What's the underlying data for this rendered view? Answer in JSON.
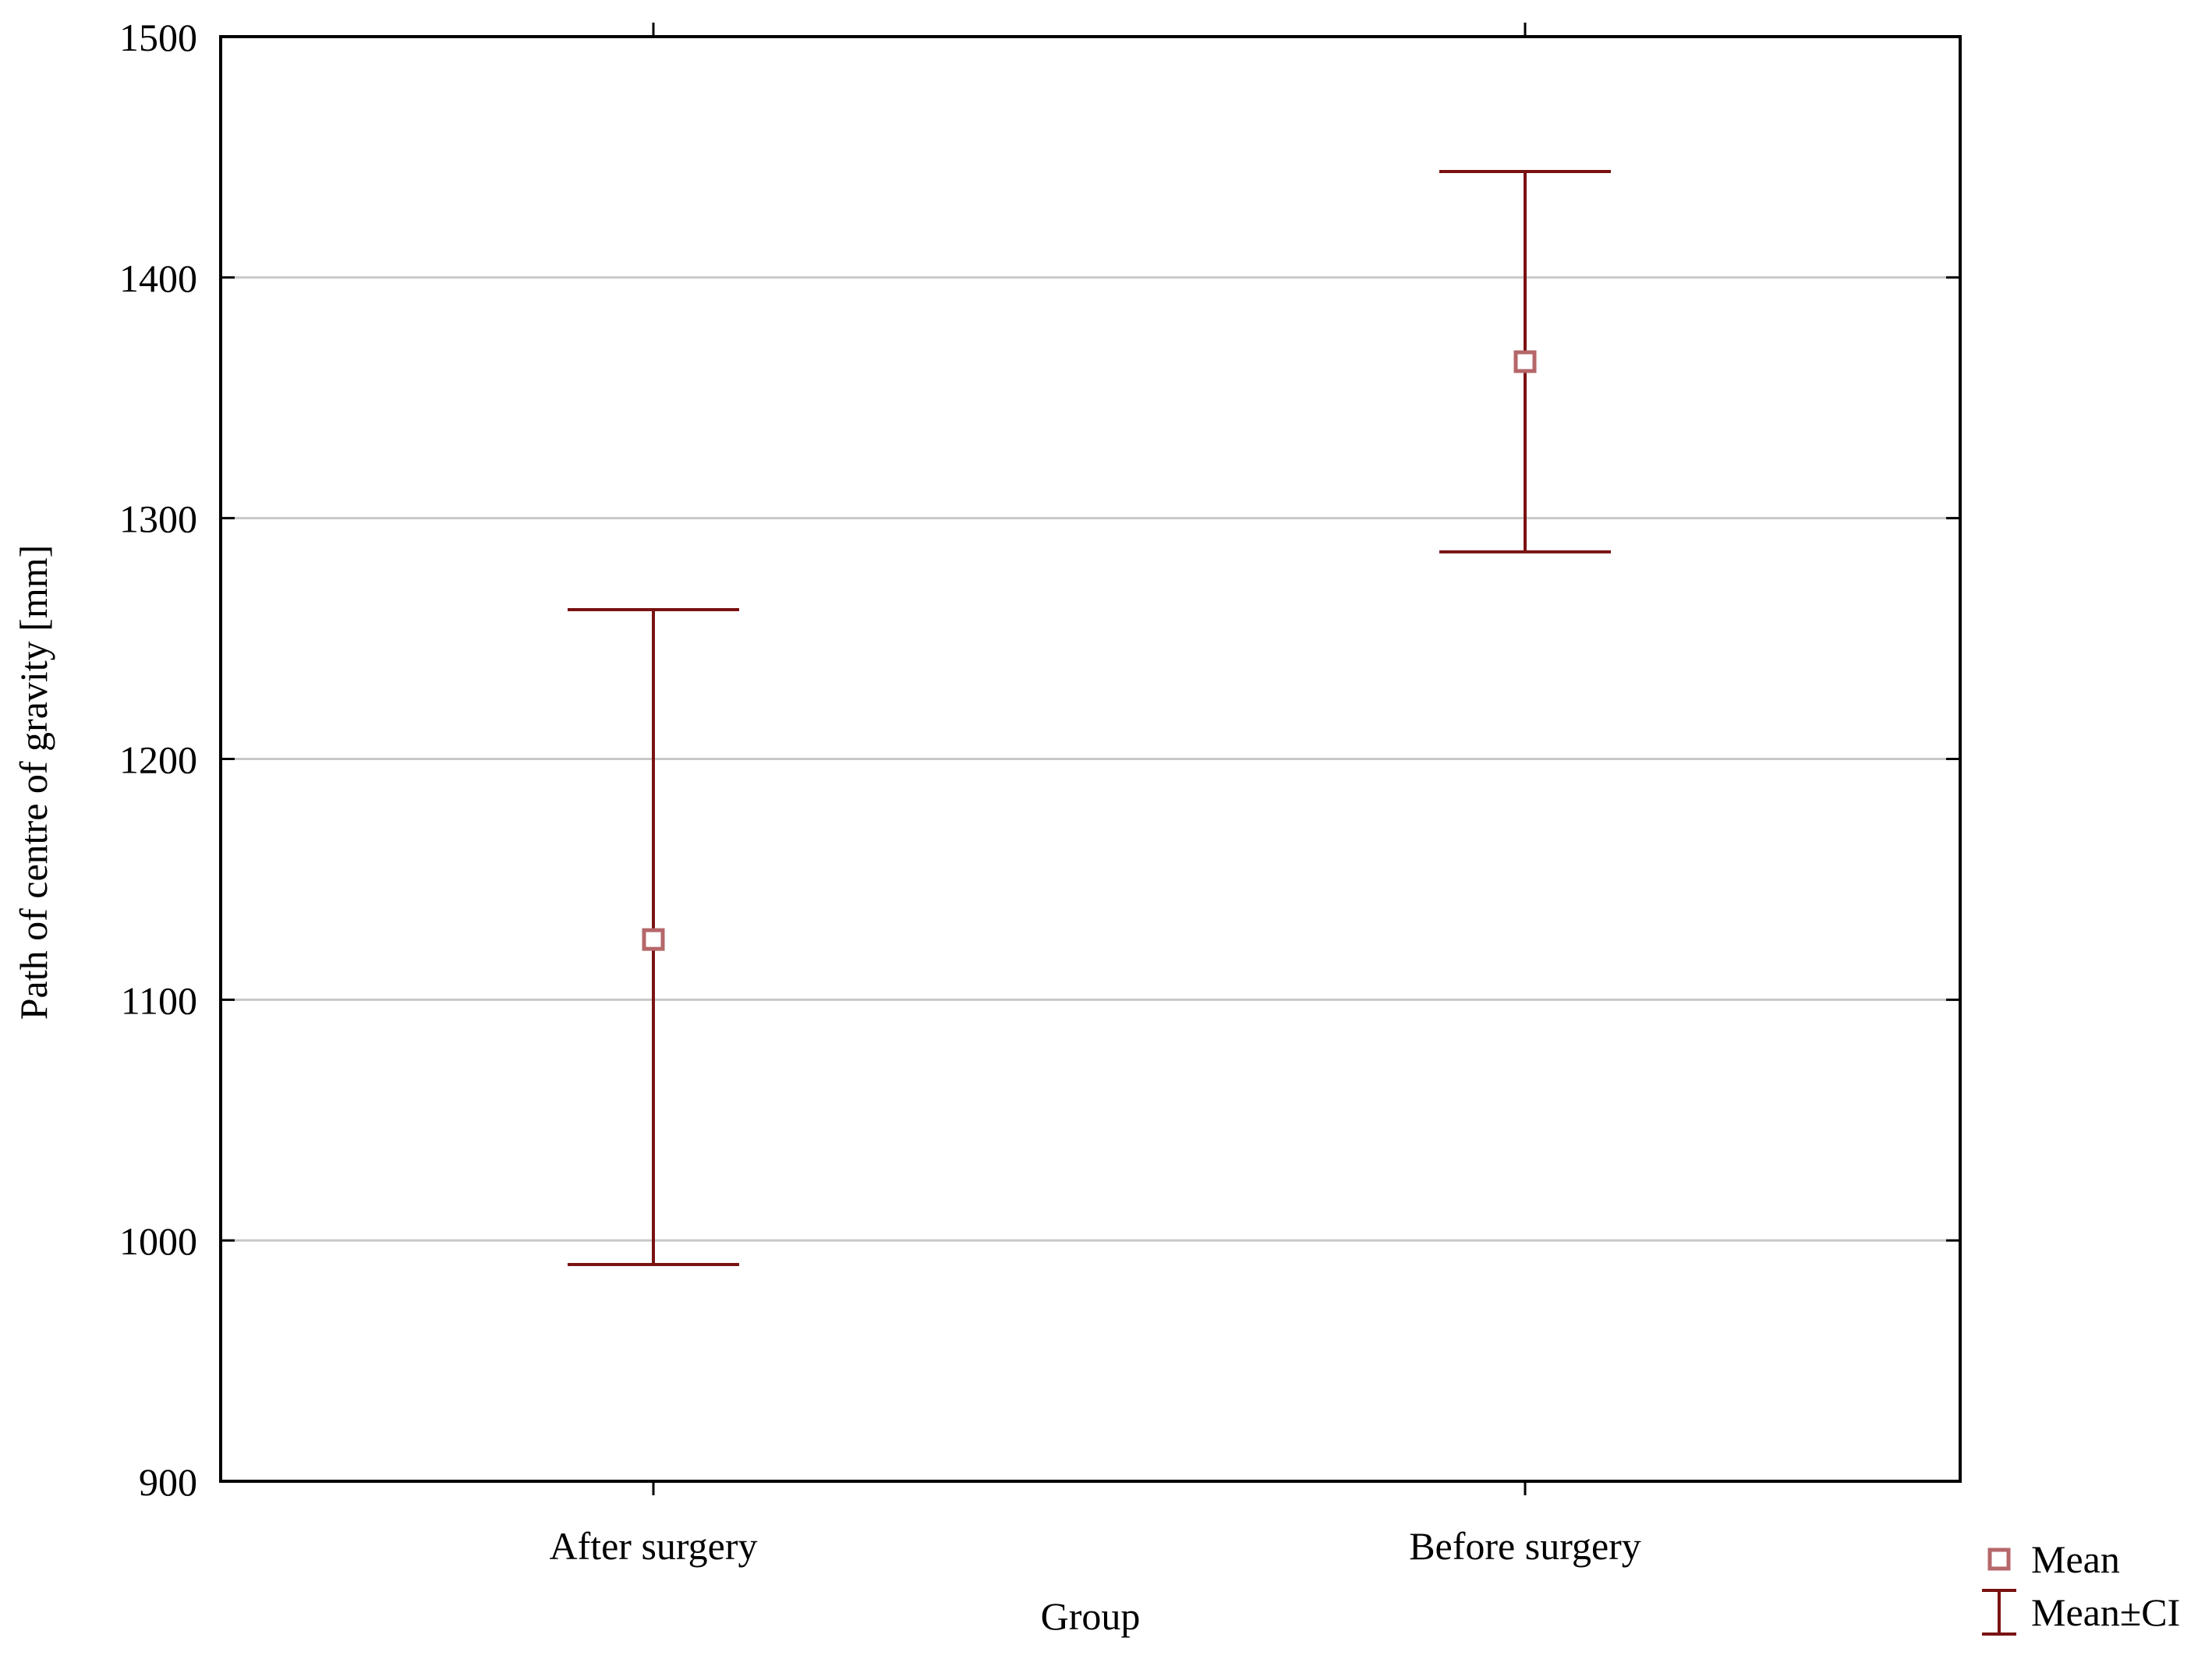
{
  "chart_data": {
    "type": "scatter",
    "subtype": "mean-with-confidence-interval",
    "title": "",
    "xlabel": "Group",
    "ylabel": "Path of centre of gravity [mm]",
    "categories": [
      "After surgery",
      "Before surgery"
    ],
    "series": [
      {
        "name": "Mean",
        "marker": "hollow-square",
        "values": [
          1125,
          1365
        ]
      },
      {
        "name": "Mean±CI",
        "marker": "error-bar",
        "lower": [
          990,
          1286
        ],
        "upper": [
          1262,
          1444
        ]
      }
    ],
    "ylim": [
      900,
      1500
    ],
    "yticks": [
      900,
      1000,
      1100,
      1200,
      1300,
      1400,
      1500
    ],
    "grid": "horizontal",
    "legend": [
      "Mean",
      "Mean±CI"
    ],
    "legend_position": "bottom-right",
    "colors": {
      "marker": "#b5676a",
      "error_bar": "#7a1212",
      "grid": "#c8c8c8",
      "axis": "#000000"
    }
  }
}
